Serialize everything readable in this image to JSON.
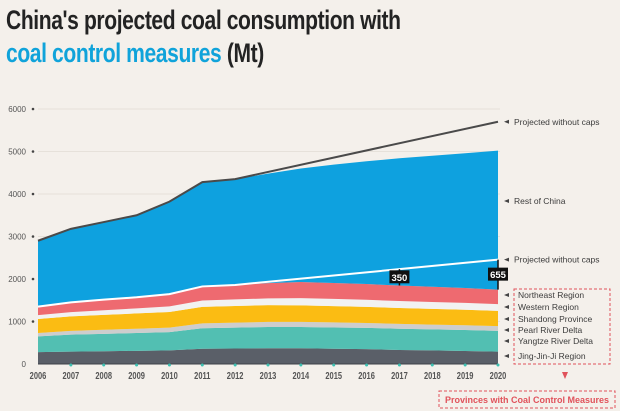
{
  "title": {
    "line1": "China's projected coal consumption with",
    "line2_accent": "coal control measures",
    "line2_rest": " (Mt)"
  },
  "colors": {
    "rest_of_china": "#0ea1df",
    "northeast": "#ee6a70",
    "western": "#f2f2f2",
    "shandong": "#fbbc13",
    "pearl_river": "#cdcdcd",
    "yangtze": "#52bfb2",
    "jing_jin_ji": "#5a5f68",
    "accent": "#10a3da",
    "annotation_red": "#e0525b"
  },
  "chart_data": {
    "type": "area",
    "stacked": true,
    "title": "China's projected coal consumption with coal control measures (Mt)",
    "xlabel": "",
    "ylabel": "",
    "ylim": [
      0,
      6000
    ],
    "yticks": [
      0,
      1000,
      2000,
      3000,
      4000,
      5000,
      6000
    ],
    "grid": true,
    "x": [
      2006,
      2007,
      2008,
      2009,
      2010,
      2011,
      2012,
      2013,
      2014,
      2015,
      2016,
      2017,
      2018,
      2019,
      2020
    ],
    "series": [
      {
        "name": "Jing-Jin-Ji Region",
        "color_key": "jing_jin_ji",
        "values": [
          280,
          290,
          300,
          310,
          320,
          360,
          365,
          370,
          370,
          360,
          350,
          330,
          320,
          305,
          290
        ]
      },
      {
        "name": "Yangtze River Delta",
        "color_key": "yangtze",
        "values": [
          370,
          400,
          410,
          420,
          430,
          480,
          490,
          500,
          500,
          500,
          500,
          500,
          495,
          495,
          490
        ]
      },
      {
        "name": "Pearl River Delta",
        "color_key": "pearl_river",
        "values": [
          80,
          90,
          95,
          100,
          105,
          115,
          118,
          120,
          120,
          118,
          115,
          113,
          112,
          111,
          110
        ]
      },
      {
        "name": "Shandong Province",
        "color_key": "shandong",
        "values": [
          330,
          340,
          350,
          360,
          370,
          390,
          392,
          394,
          390,
          385,
          380,
          375,
          370,
          365,
          360
        ]
      },
      {
        "name": "Western Region",
        "color_key": "western",
        "values": [
          90,
          100,
          110,
          120,
          130,
          150,
          155,
          160,
          170,
          168,
          166,
          164,
          162,
          161,
          160
        ]
      },
      {
        "name": "Northeast Region",
        "color_key": "northeast",
        "values": [
          200,
          230,
          250,
          260,
          290,
          330,
          340,
          360,
          380,
          375,
          370,
          365,
          360,
          350,
          340
        ]
      },
      {
        "name": "Rest of China",
        "color_key": "rest_of_china",
        "values": [
          1550,
          1730,
          1825,
          1930,
          2175,
          2455,
          2490,
          2576,
          2670,
          2784,
          2889,
          2993,
          3081,
          3173,
          3270
        ]
      }
    ],
    "lines": [
      {
        "name": "Projected without caps",
        "position": "top",
        "x": [
          2006,
          2007,
          2008,
          2009,
          2010,
          2011,
          2012,
          2020
        ],
        "values": [
          2900,
          3180,
          3340,
          3500,
          3820,
          4280,
          4350,
          5700
        ]
      },
      {
        "name": "Projected without caps",
        "position": "provinces",
        "x": [
          2006,
          2007,
          2008,
          2009,
          2010,
          2011,
          2012,
          2020
        ],
        "values": [
          1350,
          1450,
          1515,
          1570,
          1645,
          1825,
          1860,
          2455
        ]
      }
    ],
    "annotations": [
      {
        "text": "350",
        "x": 2017,
        "description": "gap between projected-without-caps and capped provinces"
      },
      {
        "text": "655",
        "x": 2020,
        "description": "gap between projected-without-caps and capped provinces"
      }
    ],
    "legend": {
      "placement": "right",
      "right_labels": [
        "Projected without caps",
        "Rest of China",
        "Projected without caps"
      ],
      "province_labels": [
        "Northeast Region",
        "Western Region",
        "Shandong Province",
        "Pearl River Delta",
        "Yangtze River Delta",
        "Jing-Jin-Ji Region"
      ],
      "group_label": "Provinces with Coal Control Measures"
    }
  }
}
